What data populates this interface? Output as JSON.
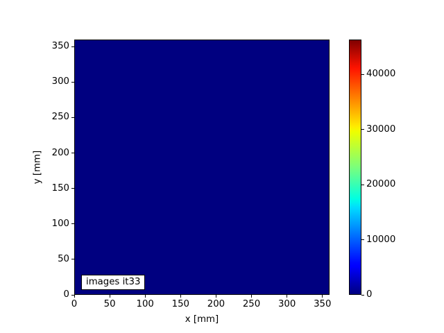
{
  "figure": {
    "background": "#ffffff",
    "axis_color": "#000000",
    "text_color": "#000000"
  },
  "chart_data": {
    "type": "heatmap",
    "title": "",
    "xlabel": "x [mm]",
    "ylabel": "y [mm]",
    "xlim": [
      0,
      360
    ],
    "ylim": [
      0,
      360
    ],
    "x_ticks": [
      0,
      50,
      100,
      150,
      200,
      250,
      300,
      350
    ],
    "y_ticks": [
      0,
      50,
      100,
      150,
      200,
      250,
      300,
      350
    ],
    "annotation": "images it33",
    "grid": false,
    "values_description": "uniform image at colormap minimum (~0) over full 360x360 mm extent",
    "uniform_value": 0,
    "uniform_color": "#000080",
    "colorbar": {
      "vmin": 0,
      "vmax": 46300,
      "ticks": [
        0,
        10000,
        20000,
        30000,
        40000
      ],
      "colormap": "jet",
      "gradient_stops": [
        {
          "pos": 0.0,
          "color": "#000080"
        },
        {
          "pos": 0.11,
          "color": "#0000ff"
        },
        {
          "pos": 0.125,
          "color": "#0008ff"
        },
        {
          "pos": 0.34,
          "color": "#00dbff"
        },
        {
          "pos": 0.375,
          "color": "#00ffe2"
        },
        {
          "pos": 0.5,
          "color": "#7bff7b"
        },
        {
          "pos": 0.64,
          "color": "#eeff00"
        },
        {
          "pos": 0.66,
          "color": "#ffec00"
        },
        {
          "pos": 0.89,
          "color": "#ff1300"
        },
        {
          "pos": 1.0,
          "color": "#800000"
        }
      ]
    }
  }
}
